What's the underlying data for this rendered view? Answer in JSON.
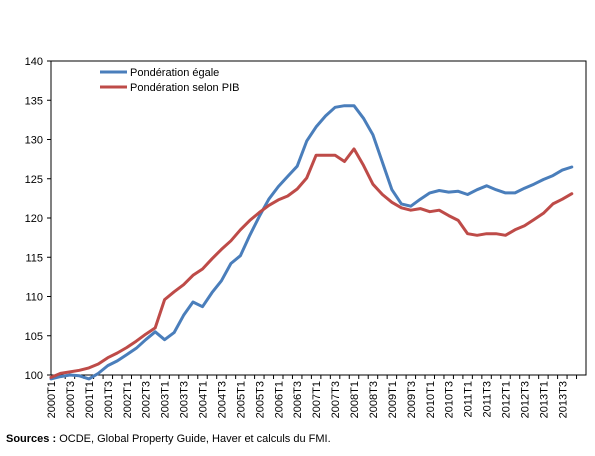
{
  "source": {
    "label": "Sources :",
    "text": "OCDE, Global Property Guide, Haver et calculs du FMI."
  },
  "chart_data": {
    "type": "line",
    "title": "",
    "xlabel": "",
    "ylabel": "",
    "ylim": [
      100,
      140
    ],
    "yticks": [
      100,
      105,
      110,
      115,
      120,
      125,
      130,
      135,
      140
    ],
    "grid": false,
    "legend_position": "top-left",
    "categories": [
      "2000T1",
      "2000T2",
      "2000T3",
      "2000T4",
      "2001T1",
      "2001T2",
      "2001T3",
      "2001T4",
      "2002T1",
      "2002T2",
      "2002T3",
      "2002T4",
      "2003T1",
      "2003T2",
      "2003T3",
      "2003T4",
      "2004T1",
      "2004T2",
      "2004T3",
      "2004T4",
      "2005T1",
      "2005T2",
      "2005T3",
      "2005T4",
      "2006T1",
      "2006T2",
      "2006T3",
      "2006T4",
      "2007T1",
      "2007T2",
      "2007T3",
      "2007T4",
      "2008T1",
      "2008T2",
      "2008T3",
      "2008T4",
      "2009T1",
      "2009T2",
      "2009T3",
      "2009T4",
      "2010T1",
      "2010T2",
      "2010T3",
      "2010T4",
      "2011T1",
      "2011T2",
      "2011T3",
      "2011T4",
      "2012T1",
      "2012T2",
      "2012T3",
      "2012T4",
      "2013T1",
      "2013T2",
      "2013T3",
      "2013T4"
    ],
    "tick_labels": [
      "2000T1",
      "2000T3",
      "2001T1",
      "2001T3",
      "2002T1",
      "2002T3",
      "2003T1",
      "2003T3",
      "2004T1",
      "2004T3",
      "2005T1",
      "2005T3",
      "2006T1",
      "2006T3",
      "2007T1",
      "2007T3",
      "2008T1",
      "2008T3",
      "2009T1",
      "2009T3",
      "2010T1",
      "2010T3",
      "2011T1",
      "2011T3",
      "2012T1",
      "2012T3",
      "2013T1",
      "2013T3"
    ],
    "series": [
      {
        "name": "Pondération égale",
        "color": "#4a7ebb",
        "values": [
          99.5,
          99.8,
          100.0,
          99.9,
          99.5,
          100.2,
          101.2,
          101.8,
          102.6,
          103.4,
          104.5,
          105.5,
          104.5,
          105.4,
          107.6,
          109.3,
          108.7,
          110.5,
          112.0,
          114.2,
          115.2,
          117.8,
          120.2,
          122.4,
          124.0,
          125.3,
          126.6,
          129.8,
          131.6,
          133.0,
          134.1,
          134.3,
          134.3,
          132.7,
          130.6,
          127.1,
          123.6,
          121.8,
          121.5,
          122.4,
          123.2,
          123.5,
          123.3,
          123.4,
          123.0,
          123.6,
          124.1,
          123.6,
          123.2,
          123.2,
          123.8,
          124.3,
          124.9,
          125.4,
          126.1,
          126.5
        ]
      },
      {
        "name": "Pondération selon PIB",
        "color": "#be4b48",
        "values": [
          99.7,
          100.2,
          100.4,
          100.6,
          100.9,
          101.4,
          102.2,
          102.8,
          103.5,
          104.3,
          105.2,
          106.0,
          109.6,
          110.6,
          111.5,
          112.7,
          113.5,
          114.8,
          116.0,
          117.1,
          118.5,
          119.7,
          120.7,
          121.6,
          122.3,
          122.8,
          123.7,
          125.1,
          128.0,
          128.0,
          128.0,
          127.2,
          128.8,
          126.7,
          124.3,
          123.0,
          122.0,
          121.3,
          121.0,
          121.2,
          120.8,
          121.0,
          120.3,
          119.7,
          118.0,
          117.8,
          118.0,
          118.0,
          117.8,
          118.5,
          119.0,
          119.8,
          120.6,
          121.8,
          122.4,
          123.1
        ]
      }
    ]
  }
}
